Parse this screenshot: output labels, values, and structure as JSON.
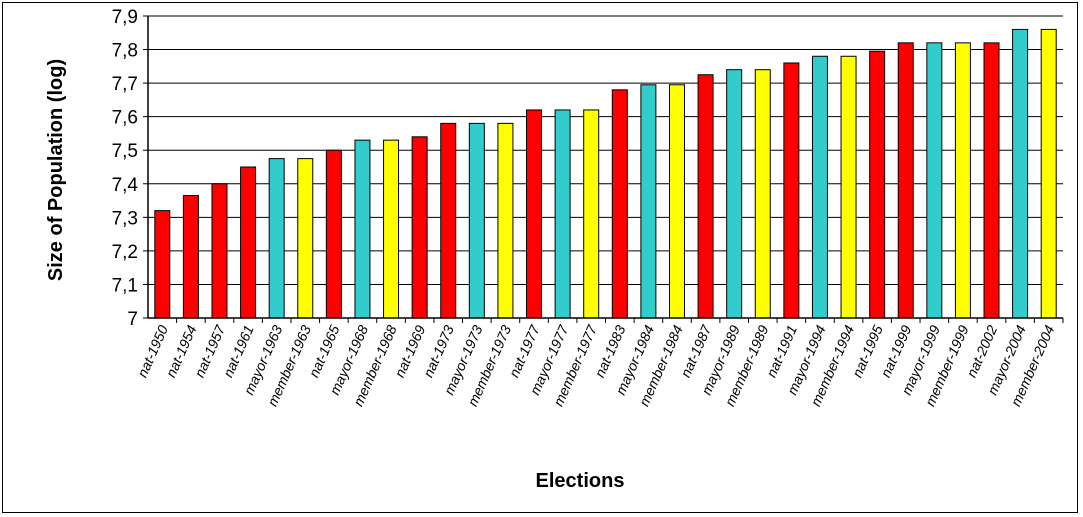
{
  "chart_data": {
    "type": "bar",
    "title": "",
    "xlabel": "Elections",
    "ylabel": "Size of Population (log)",
    "ylim": [
      7,
      7.9
    ],
    "yticks": [
      "7",
      "7,1",
      "7,2",
      "7,3",
      "7,4",
      "7,5",
      "7,6",
      "7,7",
      "7,8",
      "7,9"
    ],
    "grid": true,
    "legend": "none",
    "categories": [
      "nat-1950",
      "nat-1954",
      "nat-1957",
      "nat-1961",
      "mayor-1963",
      "member-1963",
      "nat-1965",
      "mayor-1968",
      "member-1968",
      "nat-1969",
      "nat-1973",
      "mayor-1973",
      "member-1973",
      "nat-1977",
      "mayor-1977",
      "member-1977",
      "nat-1983",
      "mayor-1984",
      "member-1984",
      "nat-1987",
      "mayor-1989",
      "member-1989",
      "nat-1991",
      "mayor-1994",
      "member-1994",
      "nat-1995",
      "nat-1999",
      "mayor-1999",
      "member-1999",
      "nat-2002",
      "mayor-2004",
      "member-2004"
    ],
    "values": [
      7.32,
      7.365,
      7.4,
      7.45,
      7.475,
      7.475,
      7.5,
      7.53,
      7.53,
      7.54,
      7.58,
      7.58,
      7.58,
      7.62,
      7.62,
      7.62,
      7.68,
      7.695,
      7.695,
      7.725,
      7.74,
      7.74,
      7.76,
      7.78,
      7.78,
      7.795,
      7.82,
      7.82,
      7.82,
      7.82,
      7.86,
      7.86
    ],
    "bar_colors": {
      "nat": "#ff0000",
      "mayor": "#33cccc",
      "member": "#ffff00"
    }
  }
}
